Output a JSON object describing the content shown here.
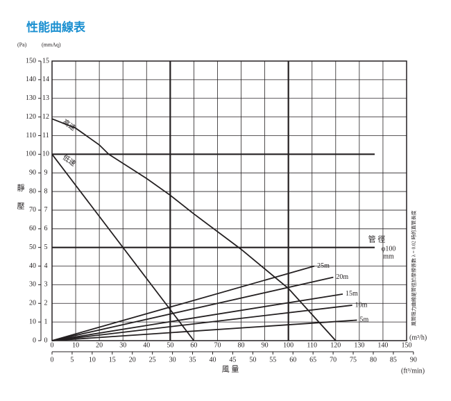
{
  "chart_data": {
    "type": "line",
    "title": "性能曲線表",
    "y_unit_left": "(Pa)",
    "y_unit": "(mmAq)",
    "y_label": "靜壓",
    "x_label": "風 量",
    "x_unit": "(m³/h)",
    "x2_unit": "(ft³/min)",
    "xlim": [
      0,
      150
    ],
    "xticks": [
      0,
      10,
      20,
      30,
      40,
      50,
      60,
      70,
      80,
      90,
      100,
      110,
      120,
      130,
      140,
      150
    ],
    "ylim": [
      0,
      15
    ],
    "yticks": [
      0,
      1,
      2,
      3,
      4,
      5,
      6,
      7,
      8,
      9,
      10,
      11,
      12,
      13,
      14,
      15
    ],
    "y2lim": [
      0,
      150
    ],
    "y2ticks": [
      0,
      10,
      20,
      30,
      40,
      50,
      60,
      70,
      80,
      90,
      100,
      110,
      120,
      130,
      140,
      150
    ],
    "x2lim": [
      0,
      88.3
    ],
    "x2ticks": [
      0,
      5,
      10,
      15,
      20,
      25,
      30,
      35,
      40,
      45,
      50,
      55,
      60,
      65,
      70,
      75,
      80,
      85,
      90
    ],
    "grid": true,
    "xmajor": [
      50,
      100
    ],
    "ymajor": [
      5,
      10
    ],
    "series": [
      {
        "name": "高速",
        "color": "#231f20",
        "x": [
          0,
          10,
          20,
          24,
          40,
          50,
          60,
          80,
          100,
          110,
          120
        ],
        "values": [
          11.9,
          11.4,
          10.5,
          10,
          8.7,
          7.8,
          6.8,
          4.9,
          2.8,
          1.4,
          0
        ]
      },
      {
        "name": "低速",
        "color": "#231f20",
        "x": [
          0,
          60
        ],
        "values": [
          10,
          0
        ]
      },
      {
        "name": "25m",
        "color": "#231f20",
        "x": [
          0,
          111
        ],
        "values": [
          0,
          4.0
        ]
      },
      {
        "name": "20m",
        "color": "#231f20",
        "x": [
          0,
          119
        ],
        "values": [
          0,
          3.4
        ]
      },
      {
        "name": "15m",
        "color": "#231f20",
        "x": [
          0,
          123
        ],
        "values": [
          0,
          2.5
        ]
      },
      {
        "name": "10m",
        "color": "#231f20",
        "x": [
          0,
          127
        ],
        "values": [
          0,
          1.9
        ]
      },
      {
        "name": "5m",
        "color": "#231f20",
        "x": [
          0,
          129
        ],
        "values": [
          0,
          1.1
        ]
      }
    ],
    "annotations": {
      "pipe": "管 徑",
      "diameter": "φ100",
      "diameter_unit": "mm",
      "note": "風管阻力曲線是管徑於摩擦係數 λ = 0.02 時的直管長度"
    }
  }
}
